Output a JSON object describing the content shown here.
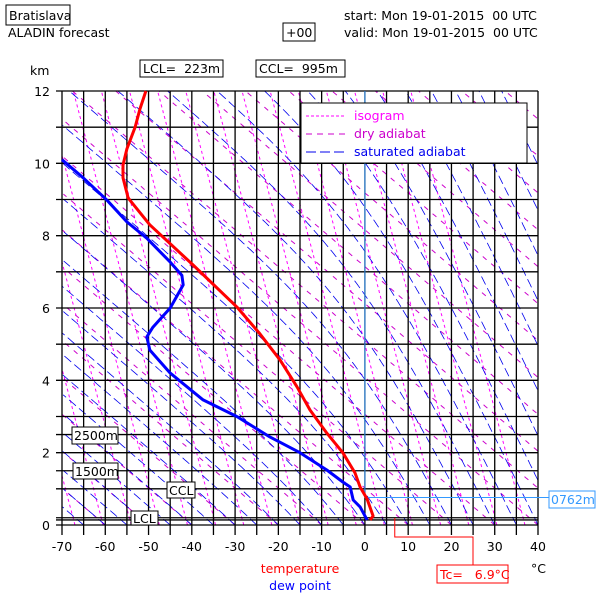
{
  "header": {
    "station": "Bratislava",
    "model": "ALADIN forecast",
    "lead": "+00",
    "start": "start: Mon 19-01-2015  00 UTC",
    "valid": "valid: Mon 19-01-2015  00 UTC",
    "lcl": "LCL=  223m",
    "ccl": "CCL=  995m"
  },
  "legend": {
    "isogram": "isogram",
    "dry": "dry adiabat",
    "saturated": "saturated adiabat"
  },
  "colors": {
    "temperature": "#ff0000",
    "dew_point": "#0000ff",
    "isogram": "#ff00ff",
    "dry": "#cc00cc",
    "saturated": "#0000ee",
    "freezing": "#3399ff"
  },
  "chart_data": {
    "type": "line",
    "title": "Bratislava ALADIN forecast sounding",
    "xlabel": "°C",
    "ylabel": "km",
    "xlim": [
      -70,
      40
    ],
    "ylim": [
      0,
      12
    ],
    "xticks": [
      "-70",
      "-60",
      "-50",
      "-40",
      "-30",
      "-20",
      "-10",
      "0",
      "10",
      "20",
      "30",
      "40"
    ],
    "yticks": [
      "0",
      "2",
      "4",
      "6",
      "8",
      "10",
      "12"
    ],
    "grid_km": [
      0,
      0.14,
      0.2,
      1,
      1.5,
      2,
      2.5,
      3,
      4,
      5,
      6,
      7,
      8,
      9,
      10,
      11,
      12
    ],
    "grid_x_step": 5,
    "series": [
      {
        "name": "temperature",
        "label": "temperature",
        "points": [
          [
            1.2,
            0.14
          ],
          [
            1.9,
            0.25
          ],
          [
            0.5,
            0.72
          ],
          [
            -1.1,
            1.05
          ],
          [
            -2.3,
            1.44
          ],
          [
            -5.1,
            2.0
          ],
          [
            -8.8,
            2.54
          ],
          [
            -12.7,
            3.18
          ],
          [
            -15.7,
            3.82
          ],
          [
            -19.6,
            4.56
          ],
          [
            -24.5,
            5.32
          ],
          [
            -29.6,
            6.03
          ],
          [
            -39.7,
            7.19
          ],
          [
            -49.7,
            8.3
          ],
          [
            -54.7,
            9.04
          ],
          [
            -55.9,
            9.6
          ],
          [
            -55.9,
            9.95
          ],
          [
            -55,
            10.4
          ],
          [
            -53.1,
            11
          ],
          [
            -52,
            11.5
          ],
          [
            -50.6,
            12
          ]
        ]
      },
      {
        "name": "dew point",
        "label": "dew point",
        "points": [
          [
            0.5,
            0.14
          ],
          [
            -1.1,
            0.5
          ],
          [
            -2.7,
            0.69
          ],
          [
            -3.4,
            1.05
          ],
          [
            -5.1,
            1.19
          ],
          [
            -8.8,
            1.52
          ],
          [
            -15,
            2.0
          ],
          [
            -21.9,
            2.43
          ],
          [
            -29.6,
            3.0
          ],
          [
            -37.4,
            3.46
          ],
          [
            -45,
            4.2
          ],
          [
            -49.7,
            4.84
          ],
          [
            -50.4,
            5.2
          ],
          [
            -49,
            5.47
          ],
          [
            -45,
            6.0
          ],
          [
            -42,
            6.64
          ],
          [
            -42.3,
            6.9
          ],
          [
            -45,
            7.27
          ],
          [
            -50.4,
            7.93
          ],
          [
            -55,
            8.38
          ],
          [
            -59.6,
            8.98
          ],
          [
            -65.1,
            9.6
          ],
          [
            -70,
            10.1
          ]
        ]
      }
    ],
    "annotations": {
      "lcl_label": "LCL",
      "lcl_km": 0.223,
      "ccl_label": "CCL",
      "ccl_km": 0.995,
      "h2500": "2500m",
      "h1500": "1500m",
      "freezing_label": "0762m",
      "freezing_km": 0.762,
      "tc_label": "Tc=   6.9°C",
      "tc_value": 6.9
    }
  }
}
